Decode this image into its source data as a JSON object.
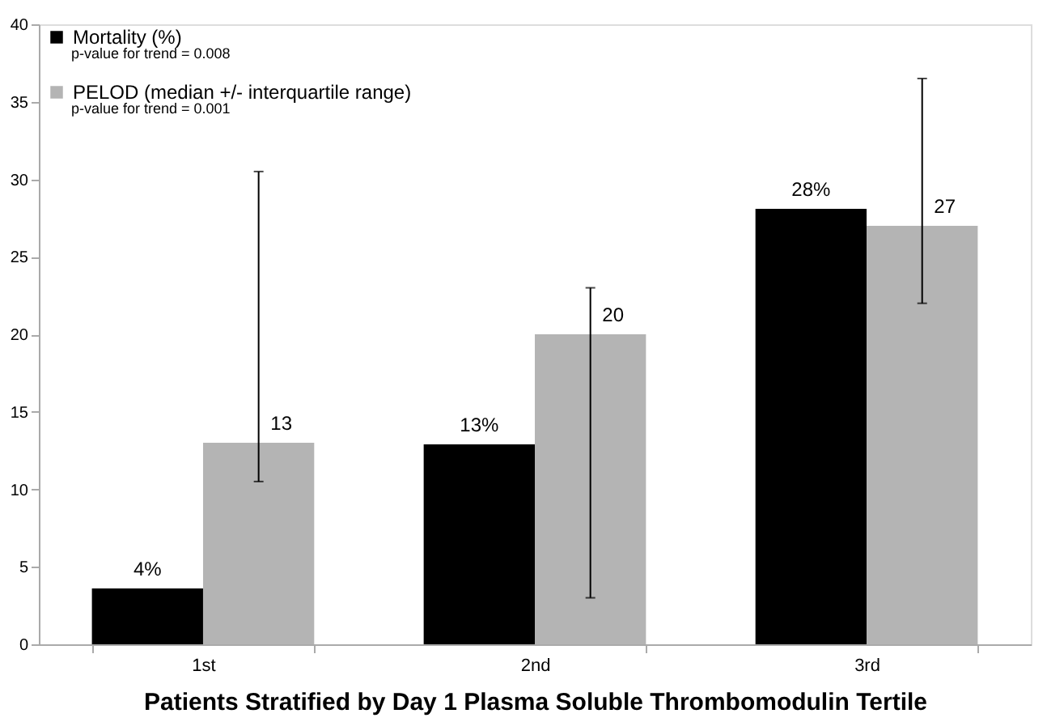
{
  "chart_data": {
    "type": "bar",
    "xlabel": "Patients Stratified by Day 1 Plasma Soluble Thrombomodulin Tertile",
    "categories": [
      "1st",
      "2nd",
      "3rd"
    ],
    "series": [
      {
        "name": "Mortality (%)",
        "color": "#000000",
        "values": [
          3.6,
          12.9,
          28.1
        ],
        "value_labels": [
          "4%",
          "13%",
          "28%"
        ]
      },
      {
        "name": "PELOD (median +/- interquartile range)",
        "color": "#b4b4b4",
        "values": [
          13,
          20,
          27
        ],
        "value_labels": [
          "13",
          "20",
          "27"
        ],
        "errors": [
          [
            10.5,
            30.5
          ],
          [
            3,
            23
          ],
          [
            22,
            36.5
          ]
        ]
      }
    ],
    "annotations": [
      "p-value for trend = 0.008",
      "p-value for trend = 0.001"
    ],
    "ylim": [
      0,
      40
    ],
    "yticks": [
      0,
      5,
      10,
      15,
      20,
      25,
      30,
      35,
      40
    ],
    "grid": false,
    "legend": "top left"
  }
}
